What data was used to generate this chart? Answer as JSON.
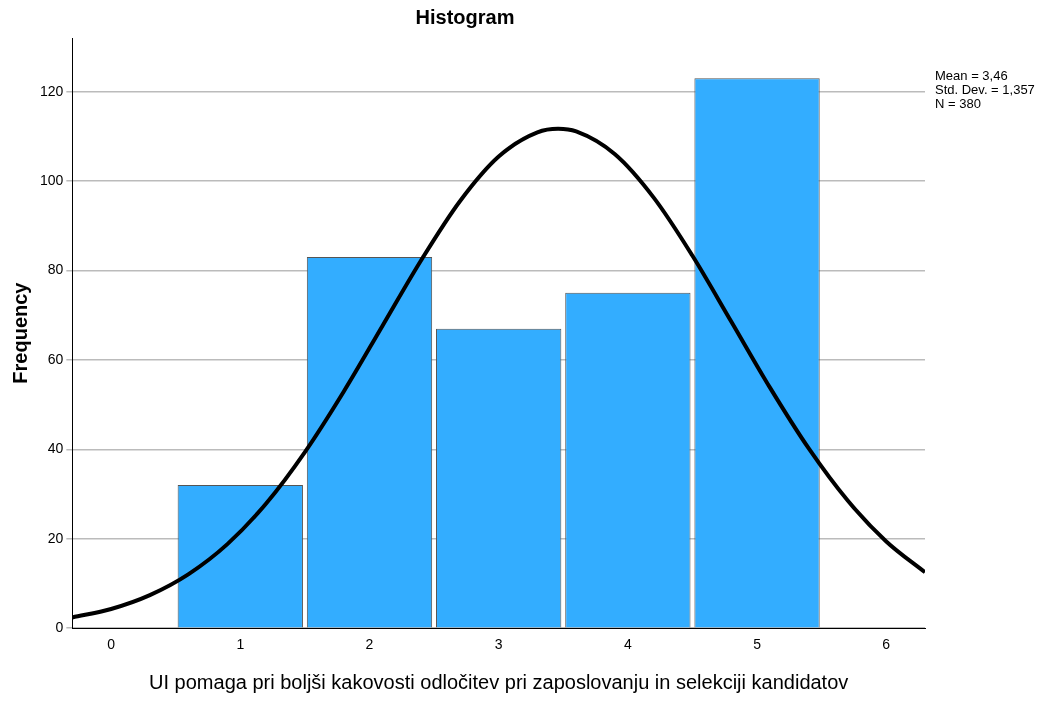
{
  "chart_data": {
    "type": "histogram",
    "title": "Histogram",
    "xlabel": "UI pomaga pri boljši kakovosti odločitev pri zaposlovanju in selekciji kandidatov",
    "ylabel": "Frequency",
    "bins": [
      0.5,
      1.5,
      2.5,
      3.5,
      4.5,
      5.5
    ],
    "values": [
      32,
      83,
      67,
      75,
      123
    ],
    "color": "#33adff",
    "series": [
      {
        "type": "line",
        "color": "#000000",
        "x": [
          -0.3,
          0,
          0.3,
          0.6,
          0.9,
          1.2,
          1.5,
          1.8,
          2.1,
          2.4,
          2.7,
          3.0,
          3.3,
          3.46,
          3.6,
          3.9,
          4.2,
          4.5,
          4.8,
          5.1,
          5.4,
          5.7,
          6.0,
          6.3
        ],
        "values": [
          2.4,
          4.3,
          7.4,
          12.1,
          18.8,
          27.9,
          39.4,
          52.9,
          67.6,
          82.3,
          95.5,
          105.5,
          110.9,
          111.7,
          111.1,
          106.0,
          96.3,
          83.3,
          68.6,
          53.8,
          40.2,
          28.6,
          19.4,
          12.5
        ]
      }
    ],
    "xlim": [
      -0.3,
      6.3
    ],
    "xticks": [
      0,
      1,
      2,
      3,
      4,
      5,
      6
    ],
    "ylim": [
      0,
      132
    ],
    "yticks": [
      0,
      20,
      40,
      60,
      80,
      100,
      120
    ],
    "grid": "y",
    "legend": false,
    "annotations": [
      "Mean = 3,46",
      "Std. Dev. = 1,357",
      "N = 380"
    ]
  }
}
